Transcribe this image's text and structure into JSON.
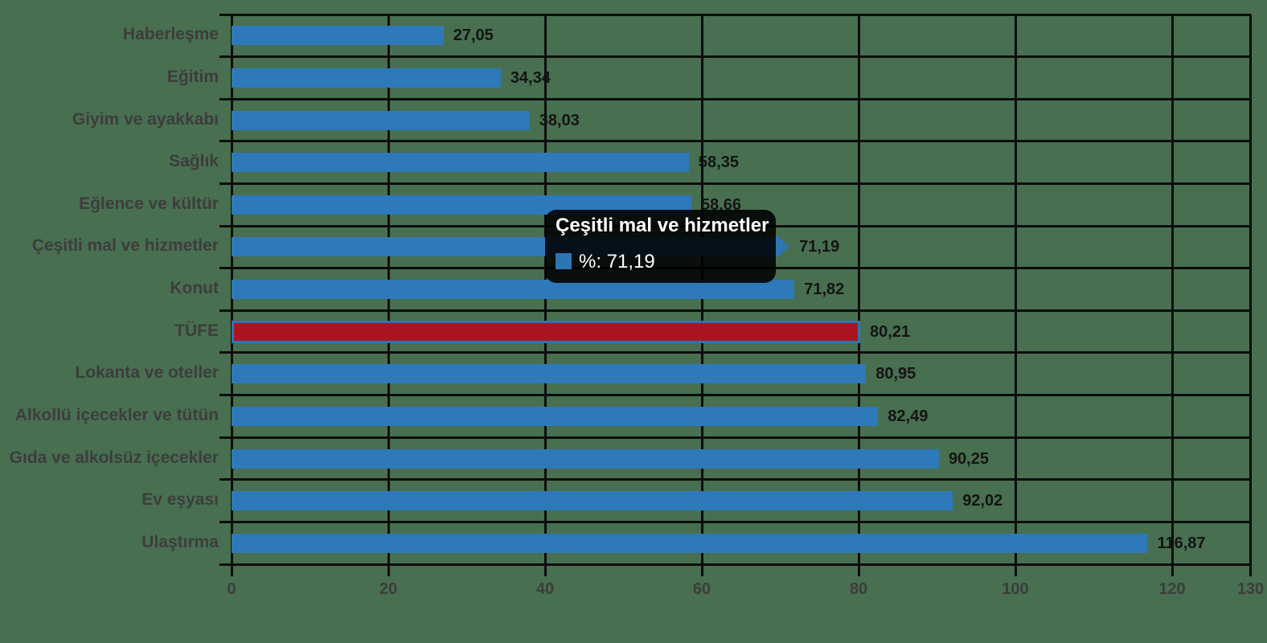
{
  "chart_data": {
    "type": "bar",
    "orientation": "horizontal",
    "title": "",
    "xlabel": "",
    "ylabel": "",
    "series_name": "%",
    "categories": [
      "Haberleşme",
      "Eğitim",
      "Giyim ve ayakkabı",
      "Sağlık",
      "Eğlence ve kültür",
      "Çeşitli mal ve hizmetler",
      "Konut",
      "TÜFE",
      "Lokanta ve oteller",
      "Alkollü içecekler ve tütün",
      "Gıda ve alkolsüz içecekler",
      "Ev eşyası",
      "Ulaştırma"
    ],
    "values": [
      27.05,
      34.34,
      38.03,
      58.35,
      58.66,
      71.19,
      71.82,
      80.21,
      80.95,
      82.49,
      90.25,
      92.02,
      116.87
    ],
    "value_labels": [
      "27,05",
      "34,34",
      "38,03",
      "58,35",
      "58,66",
      "71,19",
      "71,82",
      "80,21",
      "80,95",
      "82,49",
      "90,25",
      "92,02",
      "116,87"
    ],
    "xlim": [
      0,
      130
    ],
    "x_ticks": [
      0,
      20,
      40,
      60,
      80,
      100,
      120,
      130
    ],
    "x_tick_labels": [
      "0",
      "20",
      "40",
      "60",
      "80",
      "100",
      "120",
      "130"
    ],
    "grid": true,
    "highlight_index": 7,
    "highlight_category": "TÜFE",
    "hover_index": 5,
    "hover_category": "Çeşitli mal ve hizmetler"
  },
  "tooltip": {
    "title": "Çeşitli mal ve hizmetler",
    "series_label": "%:",
    "value": "71,19",
    "text": "%: 71,19"
  },
  "colors": {
    "background": "#486F50",
    "bar": "#2E79B9",
    "highlight_bar": "#AB1521",
    "highlight_border": "#2E75B6",
    "gridline": "#0d0d0d",
    "category_text": "#3D3D3D",
    "value_text": "#141414",
    "tooltip_bg": "rgba(0,0,0,0.87)",
    "tooltip_text": "#ffffff",
    "tooltip_swatch": "#2E75B6"
  }
}
